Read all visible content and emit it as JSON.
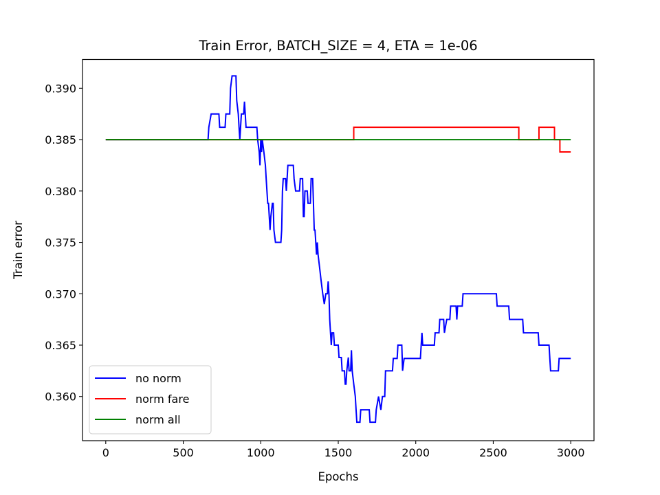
{
  "chart_data": {
    "type": "line",
    "title": "Train Error, BATCH_SIZE = 4, ETA = 1e-06",
    "xlabel": "Epochs",
    "ylabel": "Train error",
    "xlim": [
      -150,
      3150
    ],
    "ylim": [
      0.3557,
      0.3928
    ],
    "xticks": [
      0,
      500,
      1000,
      1500,
      2000,
      2500,
      3000
    ],
    "xtick_labels": [
      "0",
      "500",
      "1000",
      "1500",
      "2000",
      "2500",
      "3000"
    ],
    "yticks": [
      0.36,
      0.365,
      0.37,
      0.375,
      0.38,
      0.385,
      0.39
    ],
    "ytick_labels": [
      "0.360",
      "0.365",
      "0.370",
      "0.375",
      "0.380",
      "0.385",
      "0.390"
    ],
    "grid": false,
    "legend_position": "lower-left",
    "series": [
      {
        "name": "no norm",
        "color": "#0000ff",
        "points": [
          [
            0,
            0.385
          ],
          [
            660,
            0.385
          ],
          [
            665,
            0.3862
          ],
          [
            680,
            0.3875
          ],
          [
            730,
            0.3875
          ],
          [
            735,
            0.3862
          ],
          [
            770,
            0.3862
          ],
          [
            775,
            0.3875
          ],
          [
            800,
            0.3875
          ],
          [
            805,
            0.39
          ],
          [
            815,
            0.3912
          ],
          [
            840,
            0.3912
          ],
          [
            845,
            0.3888
          ],
          [
            855,
            0.3875
          ],
          [
            860,
            0.3862
          ],
          [
            865,
            0.385
          ],
          [
            875,
            0.3875
          ],
          [
            890,
            0.3875
          ],
          [
            895,
            0.3887
          ],
          [
            900,
            0.3875
          ],
          [
            905,
            0.3862
          ],
          [
            975,
            0.3862
          ],
          [
            980,
            0.385
          ],
          [
            990,
            0.3838
          ],
          [
            995,
            0.3825
          ],
          [
            1000,
            0.385
          ],
          [
            1005,
            0.3838
          ],
          [
            1010,
            0.385
          ],
          [
            1020,
            0.3838
          ],
          [
            1030,
            0.3825
          ],
          [
            1035,
            0.3812
          ],
          [
            1040,
            0.38
          ],
          [
            1045,
            0.3788
          ],
          [
            1050,
            0.3788
          ],
          [
            1055,
            0.3775
          ],
          [
            1060,
            0.3762
          ],
          [
            1065,
            0.3775
          ],
          [
            1075,
            0.3788
          ],
          [
            1080,
            0.3788
          ],
          [
            1085,
            0.3762
          ],
          [
            1095,
            0.375
          ],
          [
            1130,
            0.375
          ],
          [
            1135,
            0.3762
          ],
          [
            1140,
            0.38
          ],
          [
            1145,
            0.3812
          ],
          [
            1160,
            0.3812
          ],
          [
            1165,
            0.38
          ],
          [
            1170,
            0.3812
          ],
          [
            1175,
            0.3825
          ],
          [
            1210,
            0.3825
          ],
          [
            1215,
            0.3812
          ],
          [
            1225,
            0.38
          ],
          [
            1250,
            0.38
          ],
          [
            1255,
            0.3812
          ],
          [
            1270,
            0.3812
          ],
          [
            1275,
            0.3775
          ],
          [
            1280,
            0.3775
          ],
          [
            1285,
            0.38
          ],
          [
            1300,
            0.38
          ],
          [
            1305,
            0.3788
          ],
          [
            1320,
            0.3788
          ],
          [
            1325,
            0.3812
          ],
          [
            1335,
            0.3812
          ],
          [
            1340,
            0.3788
          ],
          [
            1345,
            0.3762
          ],
          [
            1350,
            0.3762
          ],
          [
            1355,
            0.375
          ],
          [
            1360,
            0.3738
          ],
          [
            1365,
            0.375
          ],
          [
            1370,
            0.3738
          ],
          [
            1380,
            0.3725
          ],
          [
            1390,
            0.3712
          ],
          [
            1400,
            0.37
          ],
          [
            1410,
            0.369
          ],
          [
            1420,
            0.37
          ],
          [
            1430,
            0.37
          ],
          [
            1435,
            0.3712
          ],
          [
            1440,
            0.37
          ],
          [
            1445,
            0.3675
          ],
          [
            1450,
            0.3662
          ],
          [
            1455,
            0.365
          ],
          [
            1460,
            0.3662
          ],
          [
            1470,
            0.3662
          ],
          [
            1475,
            0.365
          ],
          [
            1500,
            0.365
          ],
          [
            1505,
            0.3638
          ],
          [
            1520,
            0.3638
          ],
          [
            1525,
            0.3625
          ],
          [
            1540,
            0.3625
          ],
          [
            1545,
            0.3612
          ],
          [
            1550,
            0.3612
          ],
          [
            1555,
            0.3625
          ],
          [
            1565,
            0.3638
          ],
          [
            1570,
            0.3625
          ],
          [
            1580,
            0.3625
          ],
          [
            1585,
            0.3645
          ],
          [
            1590,
            0.3625
          ],
          [
            1600,
            0.3612
          ],
          [
            1610,
            0.36
          ],
          [
            1615,
            0.3587
          ],
          [
            1620,
            0.3575
          ],
          [
            1640,
            0.3575
          ],
          [
            1645,
            0.3587
          ],
          [
            1700,
            0.3587
          ],
          [
            1705,
            0.3575
          ],
          [
            1740,
            0.3575
          ],
          [
            1745,
            0.3587
          ],
          [
            1760,
            0.36
          ],
          [
            1775,
            0.3587
          ],
          [
            1785,
            0.36
          ],
          [
            1800,
            0.36
          ],
          [
            1805,
            0.3625
          ],
          [
            1850,
            0.3625
          ],
          [
            1855,
            0.3637
          ],
          [
            1880,
            0.3637
          ],
          [
            1885,
            0.365
          ],
          [
            1910,
            0.365
          ],
          [
            1915,
            0.3625
          ],
          [
            1925,
            0.3637
          ],
          [
            2030,
            0.3637
          ],
          [
            2035,
            0.365
          ],
          [
            2040,
            0.3662
          ],
          [
            2045,
            0.365
          ],
          [
            2120,
            0.365
          ],
          [
            2125,
            0.3662
          ],
          [
            2150,
            0.3662
          ],
          [
            2155,
            0.3675
          ],
          [
            2180,
            0.3675
          ],
          [
            2185,
            0.3662
          ],
          [
            2200,
            0.3675
          ],
          [
            2220,
            0.3675
          ],
          [
            2225,
            0.3688
          ],
          [
            2260,
            0.3688
          ],
          [
            2265,
            0.3675
          ],
          [
            2270,
            0.3688
          ],
          [
            2300,
            0.3688
          ],
          [
            2305,
            0.37
          ],
          [
            2520,
            0.37
          ],
          [
            2525,
            0.3688
          ],
          [
            2600,
            0.3688
          ],
          [
            2605,
            0.3675
          ],
          [
            2690,
            0.3675
          ],
          [
            2695,
            0.3662
          ],
          [
            2790,
            0.3662
          ],
          [
            2795,
            0.365
          ],
          [
            2860,
            0.365
          ],
          [
            2865,
            0.3637
          ],
          [
            2870,
            0.3625
          ],
          [
            2920,
            0.3625
          ],
          [
            2925,
            0.3637
          ],
          [
            3000,
            0.3637
          ]
        ]
      },
      {
        "name": "norm fare",
        "color": "#ff0000",
        "points": [
          [
            0,
            0.385
          ],
          [
            1600,
            0.385
          ],
          [
            1600,
            0.3862
          ],
          [
            2665,
            0.3862
          ],
          [
            2665,
            0.385
          ],
          [
            2795,
            0.385
          ],
          [
            2795,
            0.3862
          ],
          [
            2895,
            0.3862
          ],
          [
            2895,
            0.385
          ],
          [
            2930,
            0.385
          ],
          [
            2930,
            0.3838
          ],
          [
            3000,
            0.3838
          ]
        ]
      },
      {
        "name": "norm all",
        "color": "#008000",
        "points": [
          [
            0,
            0.385
          ],
          [
            3000,
            0.385
          ]
        ]
      }
    ]
  }
}
